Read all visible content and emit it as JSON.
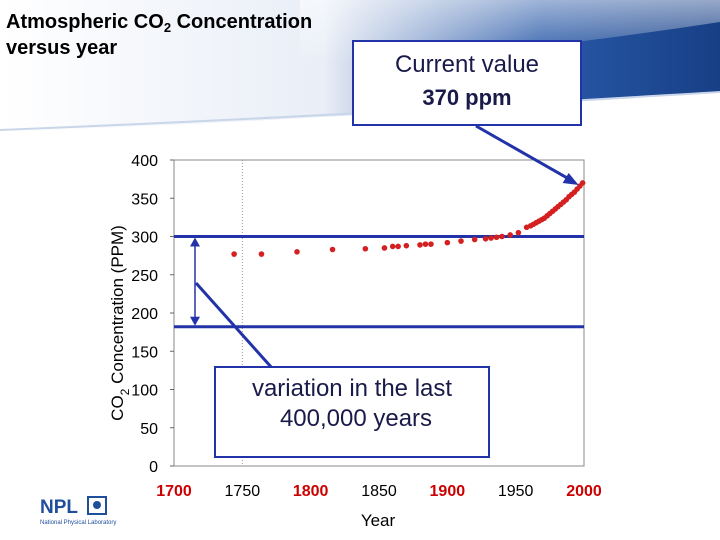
{
  "slide": {
    "title_line1_prefix": "Atmospheric CO",
    "title_line1_sub": "2",
    "title_line1_suffix": " Concentration",
    "title_line2": "versus year",
    "accent_color": "#2233aa",
    "banner_color": "#1f4e9c"
  },
  "callouts": {
    "current": {
      "line1": "Current value",
      "line2": "370 ppm"
    },
    "variation": {
      "line1": "variation in the last",
      "line2": "400,000 years"
    }
  },
  "logo": {
    "text": "NPL",
    "subtext": "National Physical Laboratory"
  },
  "chart_data": {
    "type": "scatter",
    "title": "",
    "xlabel": "Year",
    "ylabel_prefix": "CO",
    "ylabel_sub": "2",
    "ylabel_suffix": "  Concentration (PPM)",
    "xlim": [
      1700,
      2000
    ],
    "ylim": [
      0,
      400
    ],
    "x_ticks": [
      {
        "value": 1700,
        "label": "1700",
        "highlight": true
      },
      {
        "value": 1750,
        "label": "1750",
        "highlight": false
      },
      {
        "value": 1800,
        "label": "1800",
        "highlight": true
      },
      {
        "value": 1850,
        "label": "1850",
        "highlight": false
      },
      {
        "value": 1900,
        "label": "1900",
        "highlight": true
      },
      {
        "value": 1950,
        "label": "1950",
        "highlight": false
      },
      {
        "value": 2000,
        "label": "2000",
        "highlight": true
      }
    ],
    "y_ticks": [
      {
        "value": 0,
        "label": "0"
      },
      {
        "value": 50,
        "label": "50"
      },
      {
        "value": 100,
        "label": "100"
      },
      {
        "value": 150,
        "label": "150"
      },
      {
        "value": 200,
        "label": "200"
      },
      {
        "value": 250,
        "label": "250"
      },
      {
        "value": 300,
        "label": "300"
      },
      {
        "value": 350,
        "label": "350"
      },
      {
        "value": 400,
        "label": "400"
      }
    ],
    "reference_lines": [
      300,
      182
    ],
    "reference_line_color": "#2233aa",
    "highlight_tick_color": "#cc0000",
    "marker_color": "#d42020",
    "series": [
      {
        "name": "CO2",
        "points": [
          [
            1744,
            277
          ],
          [
            1764,
            277
          ],
          [
            1790,
            280
          ],
          [
            1816,
            283
          ],
          [
            1840,
            284
          ],
          [
            1854,
            285
          ],
          [
            1860,
            287
          ],
          [
            1864,
            287
          ],
          [
            1870,
            288
          ],
          [
            1880,
            289
          ],
          [
            1884,
            290
          ],
          [
            1888,
            290
          ],
          [
            1900,
            292
          ],
          [
            1910,
            294
          ],
          [
            1920,
            296
          ],
          [
            1928,
            297
          ],
          [
            1932,
            298
          ],
          [
            1936,
            299
          ],
          [
            1940,
            300
          ],
          [
            1946,
            302
          ],
          [
            1952,
            305
          ],
          [
            1958,
            312
          ],
          [
            1961,
            314
          ],
          [
            1963,
            316
          ],
          [
            1965,
            318
          ],
          [
            1967,
            320
          ],
          [
            1969,
            322
          ],
          [
            1971,
            324
          ],
          [
            1973,
            327
          ],
          [
            1975,
            330
          ],
          [
            1977,
            333
          ],
          [
            1979,
            336
          ],
          [
            1981,
            339
          ],
          [
            1983,
            342
          ],
          [
            1985,
            345
          ],
          [
            1987,
            348
          ],
          [
            1989,
            352
          ],
          [
            1991,
            355
          ],
          [
            1993,
            358
          ],
          [
            1995,
            362
          ],
          [
            1997,
            366
          ],
          [
            1999,
            370
          ]
        ]
      }
    ]
  }
}
